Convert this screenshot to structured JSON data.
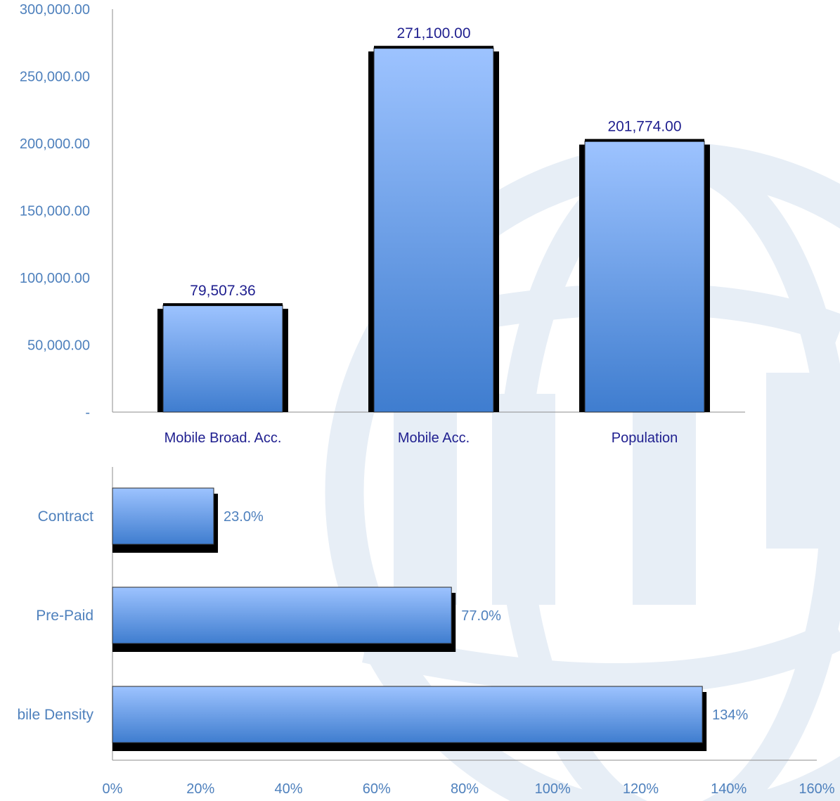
{
  "colors": {
    "bar_top": "#9dc3ff",
    "bar_bottom": "#3f7dcf",
    "shadow": "#000000",
    "axis_text": "#4f81bd",
    "category_text": "#1f1f8f",
    "watermark": "#e7eef6"
  },
  "watermark_icon": "globe-logo-watermark",
  "chart_data": [
    {
      "type": "bar",
      "categories": [
        "Mobile Broad. Acc.",
        "Mobile Acc.",
        "Population"
      ],
      "values": [
        79507.36,
        271100,
        201774
      ],
      "value_labels": [
        "79,507.36",
        "271,100.00",
        "201,774.00"
      ],
      "ylim": [
        0,
        300000
      ],
      "yticks": [
        0,
        50000,
        100000,
        150000,
        200000,
        250000,
        300000
      ],
      "ytick_labels": [
        "-",
        "50,000.00",
        "100,000.00",
        "150,000.00",
        "200,000.00",
        "250,000.00",
        "300,000.00"
      ],
      "grid": false,
      "title": "",
      "xlabel": "",
      "ylabel": ""
    },
    {
      "type": "bar",
      "orientation": "horizontal",
      "categories": [
        "Contract",
        "Pre-Paid",
        "Mobile  Density"
      ],
      "category_labels": [
        "Contract",
        "Pre-Paid",
        "bile  Density"
      ],
      "values": [
        0.23,
        0.77,
        1.34
      ],
      "value_labels": [
        "23.0%",
        "77.0%",
        "134%"
      ],
      "xlim": [
        0,
        1.6
      ],
      "xticks": [
        0,
        0.2,
        0.4,
        0.6,
        0.8,
        1.0,
        1.2,
        1.4,
        1.6
      ],
      "xtick_labels": [
        "0%",
        "20%",
        "40%",
        "60%",
        "80%",
        "100%",
        "120%",
        "140%",
        "160%"
      ],
      "grid": false,
      "title": "",
      "xlabel": "",
      "ylabel": ""
    }
  ]
}
